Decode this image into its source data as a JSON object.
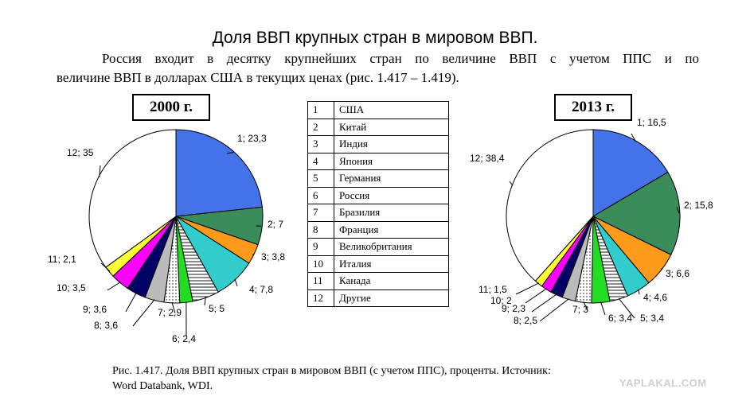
{
  "title": "Доля ВВП крупных стран в мировом ВВП.",
  "intro": {
    "line1": "Россия входит в десятку крупнейших стран по величине ВВП с учетом ППС и по",
    "line2": "величине ВВП в долларах США в текущих ценах (рис. 1.417 – 1.419)."
  },
  "legend": [
    {
      "num": "1",
      "country": "США"
    },
    {
      "num": "2",
      "country": "Китай"
    },
    {
      "num": "3",
      "country": "Индия"
    },
    {
      "num": "4",
      "country": "Япония"
    },
    {
      "num": "5",
      "country": "Германия"
    },
    {
      "num": "6",
      "country": "Россия"
    },
    {
      "num": "7",
      "country": "Бразилия"
    },
    {
      "num": "8",
      "country": "Франция"
    },
    {
      "num": "9",
      "country": "Великобритания"
    },
    {
      "num": "10",
      "country": "Италия"
    },
    {
      "num": "11",
      "country": "Канада"
    },
    {
      "num": "12",
      "country": "Другие"
    }
  ],
  "caption": {
    "line1": "Рис. 1.417. Доля ВВП крупных стран в мировом ВВП (с учетом ППС), проценты. Источник:",
    "line2": "Word Databank, WDI."
  },
  "watermark": "YAPLAKAL.COM",
  "colors": {
    "slices": [
      "#4472e8",
      "#3a8c5a",
      "#ff9a1a",
      "#33cccc",
      "hatch",
      "#22dd22",
      "dots",
      "#bbbbbb",
      "#000066",
      "#ff00ff",
      "#ffff33",
      "#ffffff"
    ]
  },
  "chart_data": [
    {
      "type": "pie",
      "year_label": "2000 г.",
      "slices": [
        {
          "label": "1; 23,3",
          "value": 23.3
        },
        {
          "label": "2; 7",
          "value": 7
        },
        {
          "label": "3; 3,8",
          "value": 3.8
        },
        {
          "label": "4; 7,8",
          "value": 7.8
        },
        {
          "label": "5; 5",
          "value": 5
        },
        {
          "label": "6; 2,4",
          "value": 2.4
        },
        {
          "label": "7; 2,9",
          "value": 2.9
        },
        {
          "label": "8; 3,6",
          "value": 3.6
        },
        {
          "label": "9; 3,6",
          "value": 3.6
        },
        {
          "label": "10; 3,5",
          "value": 3.5
        },
        {
          "label": "11; 2,1",
          "value": 2.1
        },
        {
          "label": "12; 35",
          "value": 35
        }
      ]
    },
    {
      "type": "pie",
      "year_label": "2013 г.",
      "slices": [
        {
          "label": "1; 16,5",
          "value": 16.5
        },
        {
          "label": "2; 15,8",
          "value": 15.8
        },
        {
          "label": "3; 6,6",
          "value": 6.6
        },
        {
          "label": "4; 4,6",
          "value": 4.6
        },
        {
          "label": "5; 3,4",
          "value": 3.4
        },
        {
          "label": "6; 3,4",
          "value": 3.4
        },
        {
          "label": "7; 3",
          "value": 3
        },
        {
          "label": "8; 2,5",
          "value": 2.5
        },
        {
          "label": "9; 2,3",
          "value": 2.3
        },
        {
          "label": "10; 2",
          "value": 2
        },
        {
          "label": "11; 1,5",
          "value": 1.5
        },
        {
          "label": "12; 38,4",
          "value": 38.4
        }
      ]
    }
  ]
}
